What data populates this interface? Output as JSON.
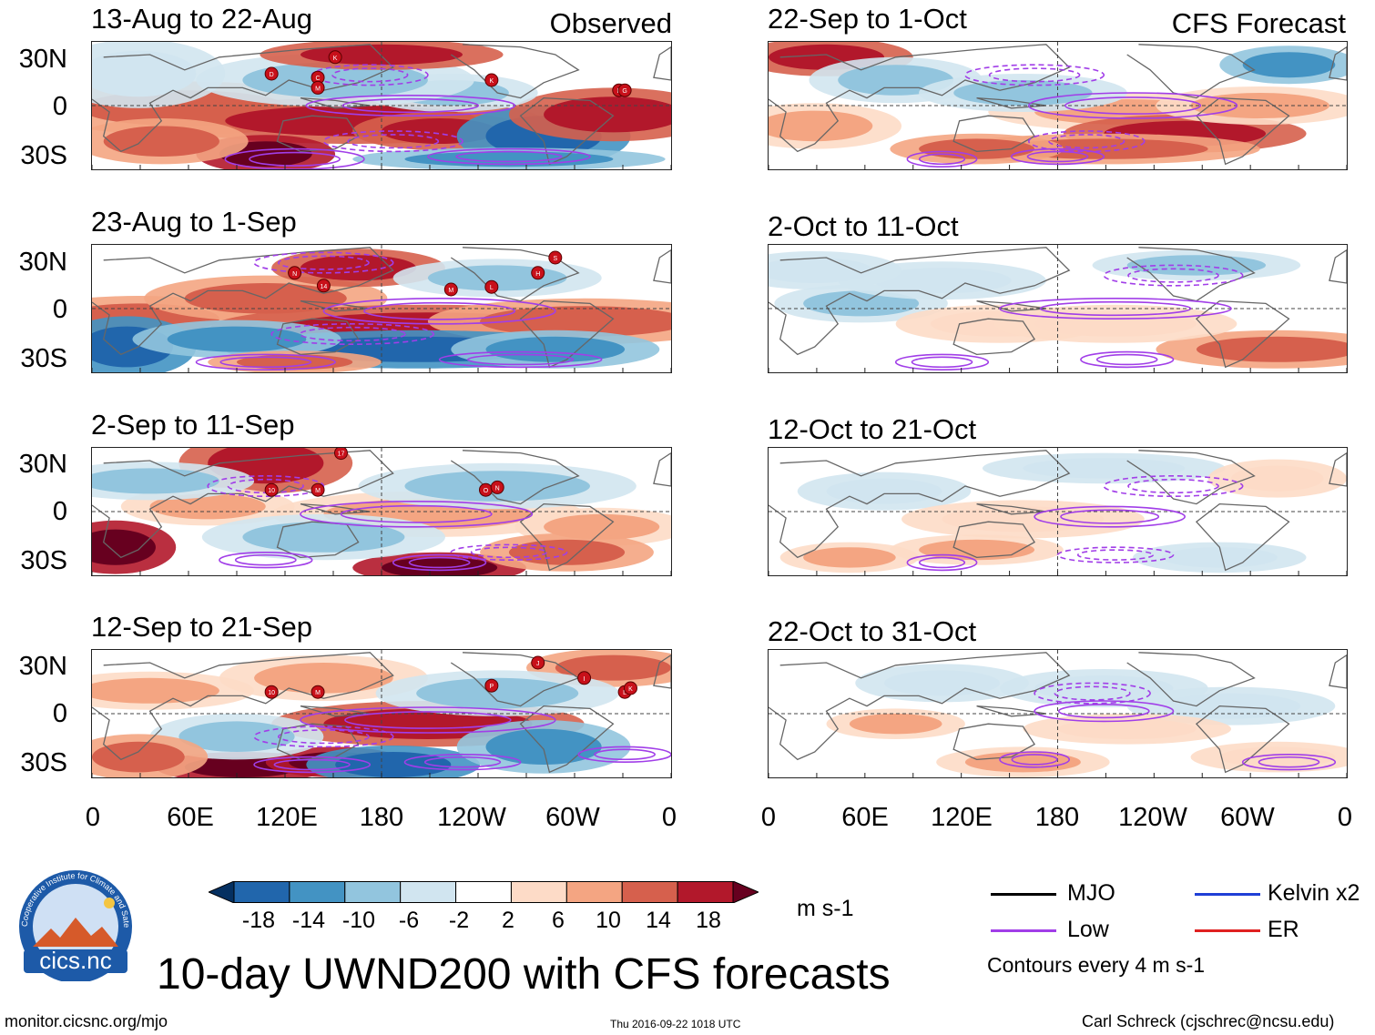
{
  "header": {
    "left_column_label": "Observed",
    "right_column_label": "CFS Forecast"
  },
  "panels_left": [
    {
      "title": "13-Aug to 22-Aug"
    },
    {
      "title": "23-Aug to 1-Sep"
    },
    {
      "title": "2-Sep to 11-Sep"
    },
    {
      "title": "12-Sep to 21-Sep"
    }
  ],
  "panels_right": [
    {
      "title": "22-Sep to 1-Oct"
    },
    {
      "title": "2-Oct to 11-Oct"
    },
    {
      "title": "12-Oct to 21-Oct"
    },
    {
      "title": "22-Oct to 31-Oct"
    }
  ],
  "y_ticks": [
    "30N",
    "0",
    "30S"
  ],
  "x_ticks": [
    "0",
    "60E",
    "120E",
    "180",
    "120W",
    "60W",
    "0"
  ],
  "colorbar": {
    "unit": "m s-1",
    "labels": [
      "-18",
      "-14",
      "-10",
      "-6",
      "-2",
      "2",
      "6",
      "10",
      "14",
      "18"
    ],
    "colors": [
      "#053061",
      "#2166ac",
      "#4393c3",
      "#92c5de",
      "#d1e5f0",
      "#ffffff",
      "#fddbc7",
      "#f4a582",
      "#d6604d",
      "#b2182b",
      "#67001f"
    ]
  },
  "legend": {
    "mjo": "MJO",
    "kelvin": "Kelvin x2",
    "low": "Low",
    "er": "ER",
    "contours_note": "Contours every 4 m s-1",
    "colors": {
      "mjo": "#000000",
      "kelvin": "#1f3fd6",
      "low": "#a13ee8",
      "er": "#e02020"
    }
  },
  "main_title": "10-day UWND200 with CFS forecasts",
  "footer": {
    "url": "monitor.cicsnc.org/mjo",
    "timestamp": "Thu 2016-09-22 1018 UTC",
    "author": "Carl Schreck (cjschrec@ncsu.edu)"
  },
  "logo": {
    "name": "cics.nc",
    "ring_text": "Cooperative Institute for Climate and Satellites"
  },
  "storm_markers_left": [
    [
      "D",
      "C",
      "M",
      "K",
      "K",
      "F",
      "G"
    ],
    [
      "N",
      "14",
      "M",
      "L",
      "H",
      "S"
    ],
    [
      "17",
      "10",
      "M",
      "O",
      "N"
    ],
    [
      "10",
      "M",
      "P",
      "J",
      "I",
      "L",
      "K"
    ]
  ]
}
